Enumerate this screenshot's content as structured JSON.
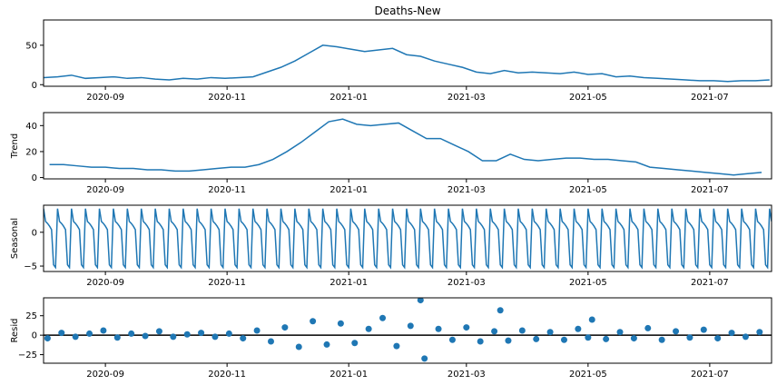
{
  "chart_data": [
    {
      "type": "line",
      "title": "Deaths-New",
      "ylabel": "",
      "ylim": [
        -2,
        82
      ],
      "yticks": [
        0,
        50
      ],
      "x_start": "2020-08-01",
      "x_end": "2021-08-01",
      "xticks": [
        "2020-09",
        "2020-11",
        "2021-01",
        "2021-03",
        "2021-05",
        "2021-07"
      ],
      "color": "#1f77b4",
      "grid": false,
      "series": [
        {
          "x": [
            "2020-08-01",
            "2020-08-08",
            "2020-08-15",
            "2020-08-22",
            "2020-08-29",
            "2020-09-05",
            "2020-09-12",
            "2020-09-19",
            "2020-09-26",
            "2020-10-03",
            "2020-10-10",
            "2020-10-17",
            "2020-10-24",
            "2020-10-31",
            "2020-11-07",
            "2020-11-14",
            "2020-11-21",
            "2020-11-28",
            "2020-12-05",
            "2020-12-12",
            "2020-12-19",
            "2020-12-26",
            "2021-01-02",
            "2021-01-09",
            "2021-01-16",
            "2021-01-23",
            "2021-01-30",
            "2021-02-06",
            "2021-02-13",
            "2021-02-20",
            "2021-02-27",
            "2021-03-06",
            "2021-03-13",
            "2021-03-20",
            "2021-03-27",
            "2021-04-03",
            "2021-04-10",
            "2021-04-17",
            "2021-04-24",
            "2021-05-01",
            "2021-05-08",
            "2021-05-15",
            "2021-05-22",
            "2021-05-29",
            "2021-06-05",
            "2021-06-12",
            "2021-06-19",
            "2021-06-26",
            "2021-07-03",
            "2021-07-10",
            "2021-07-17",
            "2021-07-24",
            "2021-07-31"
          ],
          "values": [
            9,
            10,
            12,
            8,
            9,
            10,
            8,
            9,
            7,
            6,
            8,
            7,
            9,
            8,
            9,
            10,
            16,
            22,
            30,
            40,
            50,
            48,
            45,
            42,
            44,
            46,
            38,
            36,
            30,
            26,
            22,
            16,
            14,
            18,
            15,
            16,
            15,
            14,
            16,
            13,
            14,
            10,
            11,
            9,
            8,
            7,
            6,
            5,
            5,
            4,
            5,
            5,
            6
          ]
        }
      ]
    },
    {
      "type": "line",
      "title": "",
      "ylabel": "Trend",
      "ylim": [
        -1,
        50
      ],
      "yticks": [
        0,
        20,
        40
      ],
      "x_start": "2020-08-01",
      "x_end": "2021-08-01",
      "xticks": [
        "2020-09",
        "2020-11",
        "2021-01",
        "2021-03",
        "2021-05",
        "2021-07"
      ],
      "color": "#1f77b4",
      "grid": false,
      "series": [
        {
          "x": [
            "2020-08-04",
            "2020-08-11",
            "2020-08-18",
            "2020-08-25",
            "2020-09-01",
            "2020-09-08",
            "2020-09-15",
            "2020-09-22",
            "2020-09-29",
            "2020-10-06",
            "2020-10-13",
            "2020-10-20",
            "2020-10-27",
            "2020-11-03",
            "2020-11-10",
            "2020-11-17",
            "2020-11-24",
            "2020-12-01",
            "2020-12-08",
            "2020-12-15",
            "2020-12-22",
            "2020-12-29",
            "2021-01-05",
            "2021-01-12",
            "2021-01-19",
            "2021-01-26",
            "2021-02-02",
            "2021-02-09",
            "2021-02-16",
            "2021-02-23",
            "2021-03-02",
            "2021-03-09",
            "2021-03-16",
            "2021-03-23",
            "2021-03-30",
            "2021-04-06",
            "2021-04-13",
            "2021-04-20",
            "2021-04-27",
            "2021-05-04",
            "2021-05-11",
            "2021-05-18",
            "2021-05-25",
            "2021-06-01",
            "2021-06-08",
            "2021-06-15",
            "2021-06-22",
            "2021-06-29",
            "2021-07-06",
            "2021-07-13",
            "2021-07-20",
            "2021-07-27"
          ],
          "values": [
            10,
            10,
            9,
            8,
            8,
            7,
            7,
            6,
            6,
            5,
            5,
            6,
            7,
            8,
            8,
            10,
            14,
            20,
            27,
            35,
            43,
            45,
            41,
            40,
            41,
            42,
            36,
            30,
            30,
            25,
            20,
            13,
            13,
            18,
            14,
            13,
            14,
            15,
            15,
            14,
            14,
            13,
            12,
            8,
            7,
            6,
            5,
            4,
            3,
            2,
            3,
            4
          ]
        }
      ]
    },
    {
      "type": "line",
      "title": "",
      "ylabel": "Seasonal",
      "ylim": [
        -5.8,
        4.0
      ],
      "yticks": [
        -5,
        0
      ],
      "x_start": "2020-08-01",
      "x_end": "2021-08-01",
      "xticks": [
        "2020-09",
        "2020-11",
        "2021-01",
        "2021-03",
        "2021-05",
        "2021-07"
      ],
      "color": "#1f77b4",
      "grid": false,
      "period_days": 7,
      "weekly_pattern": [
        3.5,
        1.6,
        1.3,
        0.9,
        0.4,
        -4.8,
        -5.2
      ],
      "series": []
    },
    {
      "type": "scatter",
      "title": "",
      "ylabel": "Resid",
      "ylim": [
        -36,
        48
      ],
      "yticks": [
        -25,
        0,
        25
      ],
      "x_start": "2020-08-01",
      "x_end": "2021-08-01",
      "xticks": [
        "2020-09",
        "2020-11",
        "2021-01",
        "2021-03",
        "2021-05",
        "2021-07"
      ],
      "color": "#1f77b4",
      "zero_line": true,
      "grid": false,
      "series": [
        {
          "x": [
            "2020-08-03",
            "2020-08-10",
            "2020-08-17",
            "2020-08-24",
            "2020-08-31",
            "2020-09-07",
            "2020-09-14",
            "2020-09-21",
            "2020-09-28",
            "2020-10-05",
            "2020-10-12",
            "2020-10-19",
            "2020-10-26",
            "2020-11-02",
            "2020-11-09",
            "2020-11-16",
            "2020-11-23",
            "2020-11-30",
            "2020-12-07",
            "2020-12-14",
            "2020-12-21",
            "2020-12-28",
            "2021-01-04",
            "2021-01-11",
            "2021-01-18",
            "2021-01-25",
            "2021-02-01",
            "2021-02-06",
            "2021-02-08",
            "2021-02-15",
            "2021-02-22",
            "2021-03-01",
            "2021-03-08",
            "2021-03-15",
            "2021-03-18",
            "2021-03-22",
            "2021-03-29",
            "2021-04-05",
            "2021-04-12",
            "2021-04-19",
            "2021-04-26",
            "2021-05-01",
            "2021-05-03",
            "2021-05-10",
            "2021-05-17",
            "2021-05-24",
            "2021-05-31",
            "2021-06-07",
            "2021-06-14",
            "2021-06-21",
            "2021-06-28",
            "2021-07-05",
            "2021-07-12",
            "2021-07-19",
            "2021-07-26"
          ],
          "values": [
            -4,
            3,
            -2,
            2,
            6,
            -3,
            2,
            -1,
            5,
            -2,
            1,
            3,
            -2,
            2,
            -4,
            6,
            -8,
            10,
            -15,
            18,
            -12,
            15,
            -10,
            8,
            22,
            -14,
            12,
            45,
            -30,
            8,
            -6,
            10,
            -8,
            5,
            32,
            -7,
            6,
            -5,
            4,
            -6,
            8,
            -3,
            20,
            -5,
            4,
            -4,
            9,
            -6,
            5,
            -3,
            7,
            -4,
            3,
            -2,
            4
          ]
        }
      ]
    }
  ]
}
